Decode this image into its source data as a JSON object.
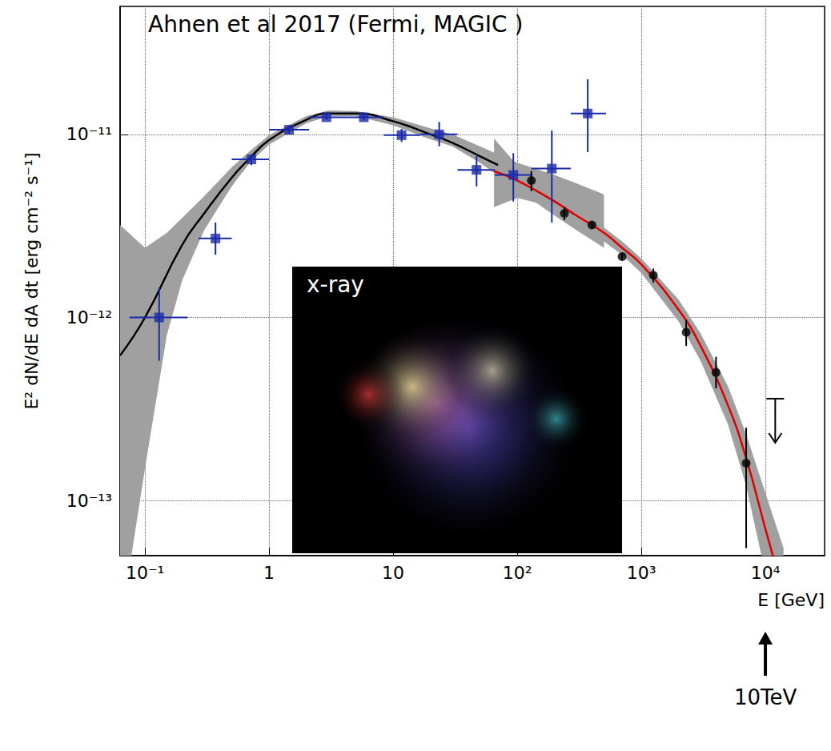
{
  "chart_data": {
    "type": "scatter",
    "log": true,
    "grid": true,
    "title": "Ahnen et al 2017 (Fermi, MAGIC )",
    "x_label": "E [GeV]",
    "y_label": "E² dN/dE dA dt [erg cm⁻² s⁻¹]",
    "xlim": [
      0.063,
      30000
    ],
    "ylim": [
      5e-14,
      5e-11
    ],
    "xticks": [
      {
        "value": 0.1,
        "label": "10⁻¹"
      },
      1,
      10,
      {
        "value": 100,
        "label": "10²"
      },
      {
        "value": 1000,
        "label": "10³"
      },
      {
        "value": 10000,
        "label": "10⁴"
      }
    ],
    "yticks": [
      {
        "value": 1e-13,
        "label": "10⁻¹³"
      },
      {
        "value": 1e-12,
        "label": "10⁻¹²"
      },
      {
        "value": 1e-11,
        "label": "10⁻¹¹"
      }
    ],
    "annotations": [
      {
        "text": "x-ray"
      },
      {
        "text": "10TeV",
        "x": 10000
      }
    ],
    "series": [
      {
        "type": "band",
        "color": "#a0a0a0",
        "x": [
          0.063,
          0.1,
          0.15,
          0.2,
          0.3,
          0.5,
          0.7,
          1,
          2,
          3,
          5,
          10,
          20,
          30,
          50,
          100,
          200,
          300,
          500
        ],
        "low": [
          2e-14,
          1.5e-13,
          8e-13,
          1.6e-12,
          3e-12,
          5.2e-12,
          7e-12,
          8.8e-12,
          1.15e-11,
          1.26e-11,
          1.26e-11,
          1.12e-11,
          9.4e-12,
          8.6e-12,
          7e-12,
          5e-12,
          3.6e-12,
          3e-12,
          2.4e-12
        ],
        "high": [
          3.2e-12,
          2.4e-12,
          2.9e-12,
          3.5e-12,
          4.6e-12,
          6.6e-12,
          8.1e-12,
          9.9e-12,
          1.26e-11,
          1.35e-11,
          1.34e-11,
          1.24e-11,
          1.08e-11,
          1e-11,
          8.6e-12,
          7e-12,
          6e-12,
          5.4e-12,
          4.7e-12
        ]
      },
      {
        "type": "band",
        "color": "#a0a0a0",
        "x": [
          65,
          100,
          150,
          200,
          300,
          500,
          700,
          1000,
          2000,
          3000,
          5000,
          7000,
          10000,
          14000
        ],
        "low": [
          4e-12,
          4.5e-12,
          4.2e-12,
          3.8e-12,
          3.2e-12,
          2.6e-12,
          2.2e-12,
          1.75e-12,
          9.5e-13,
          5.8e-13,
          2.6e-13,
          1.2e-13,
          4e-14,
          2e-14
        ],
        "high": [
          9.5e-12,
          6.8e-12,
          5.3e-12,
          4.7e-12,
          3.8e-12,
          3.1e-12,
          2.6e-12,
          2.1e-12,
          1.25e-12,
          8.2e-13,
          4.2e-13,
          2.3e-13,
          1.1e-13,
          5.5e-14
        ]
      },
      {
        "type": "line",
        "color": "#000000",
        "line_style": "solid",
        "x": [
          0.063,
          0.1,
          0.2,
          0.3,
          0.5,
          0.7,
          1,
          2,
          3,
          5,
          10,
          20,
          30,
          50,
          70
        ],
        "values": [
          6.2e-13,
          1e-12,
          2.5e-12,
          3.7e-12,
          5.8e-12,
          7.4e-12,
          9.3e-12,
          1.2e-11,
          1.3e-11,
          1.3e-11,
          1.18e-11,
          1e-11,
          9e-12,
          7.6e-12,
          6.8e-12
        ]
      },
      {
        "type": "line",
        "color": "#e00000",
        "line_style": "solid",
        "x": [
          65,
          100,
          200,
          300,
          500,
          700,
          1000,
          2000,
          3000,
          5000,
          7000,
          10000,
          12000
        ],
        "values": [
          6.3e-12,
          5.6e-12,
          4.3e-12,
          3.6e-12,
          2.9e-12,
          2.4e-12,
          1.95e-12,
          1.1e-12,
          7e-13,
          3.3e-13,
          1.7e-13,
          7e-14,
          4.5e-14
        ]
      },
      {
        "type": "scatter",
        "marker": "square",
        "color": "#1a2aa8",
        "x": [
          0.13,
          0.37,
          0.72,
          1.45,
          2.9,
          5.8,
          11.7,
          23.5,
          47,
          93,
          190,
          370
        ],
        "values": [
          1e-12,
          2.7e-12,
          7.3e-12,
          1.06e-11,
          1.24e-11,
          1.24e-11,
          9.9e-12,
          1e-11,
          6.4e-12,
          6e-12,
          6.5e-12,
          1.3e-11
        ],
        "x_low": [
          0.075,
          0.27,
          0.5,
          1.0,
          2.1,
          4.2,
          8.4,
          16.5,
          33,
          66,
          130,
          270
        ],
        "x_high": [
          0.22,
          0.5,
          1.0,
          2.1,
          4.2,
          8.4,
          16.5,
          33,
          66,
          130,
          270,
          520
        ],
        "y_low": [
          5.8e-13,
          2.2e-12,
          6.8e-12,
          1e-11,
          1.2e-11,
          1.19e-11,
          9.1e-12,
          8.6e-12,
          5.2e-12,
          4.3e-12,
          3.3e-12,
          8e-12
        ],
        "y_high": [
          1.45e-12,
          3.3e-12,
          7.8e-12,
          1.12e-11,
          1.28e-11,
          1.29e-11,
          1.07e-11,
          1.17e-11,
          7.6e-12,
          7.9e-12,
          1.05e-11,
          2e-11
        ]
      },
      {
        "type": "scatter",
        "marker": "circle",
        "color": "#000000",
        "x": [
          130,
          240,
          400,
          700,
          1250,
          2300,
          4000,
          7000
        ],
        "values": [
          5.6e-12,
          3.7e-12,
          3.2e-12,
          2.15e-12,
          1.7e-12,
          8.3e-13,
          5e-13,
          1.6e-13
        ],
        "y_low": [
          4.9e-12,
          3.4e-12,
          3.05e-12,
          2.05e-12,
          1.55e-12,
          7e-13,
          4.1e-13,
          5.5e-14
        ],
        "y_high": [
          6.3e-12,
          4e-12,
          3.35e-12,
          2.25e-12,
          1.85e-12,
          9.7e-13,
          6.1e-13,
          2.5e-13
        ]
      },
      {
        "type": "upper_limit",
        "marker": "arrow",
        "color": "#000000",
        "x": [
          12000
        ],
        "values": [
          3.6e-13
        ]
      }
    ]
  }
}
